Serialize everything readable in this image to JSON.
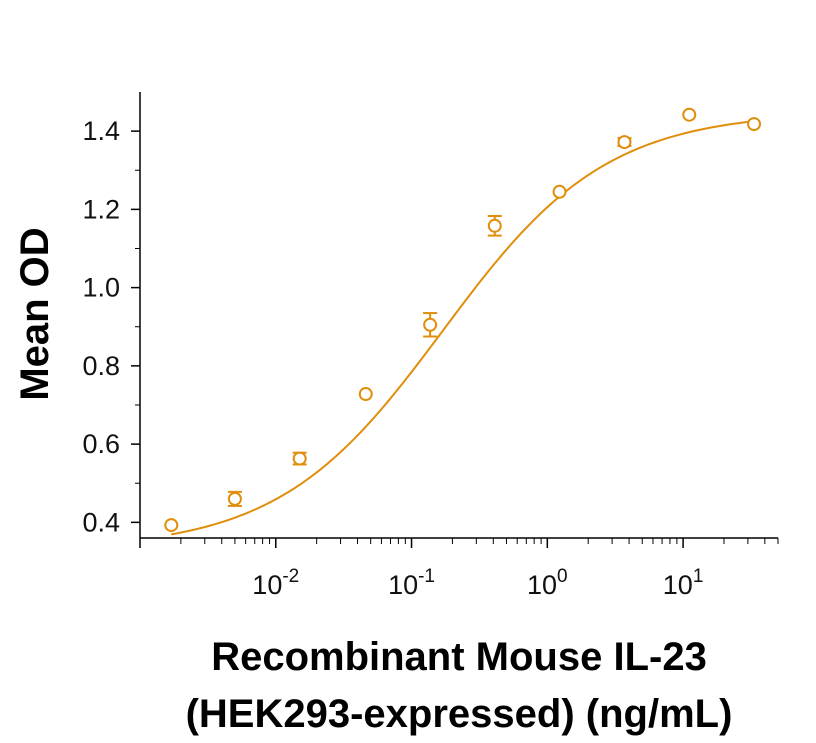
{
  "chart_data": {
    "type": "scatter",
    "title": "",
    "xlabel_lines": [
      "Recombinant Mouse IL-23",
      "(HEK293-expressed) (ng/mL)"
    ],
    "ylabel": "Mean OD",
    "x_scale": "log",
    "xlim": [
      0.001,
      50
    ],
    "ylim": [
      0.36,
      1.5
    ],
    "x_ticks": [
      {
        "value": 0.01,
        "base": "10",
        "exp": "-2"
      },
      {
        "value": 0.1,
        "base": "10",
        "exp": "-1"
      },
      {
        "value": 1,
        "base": "10",
        "exp": "0"
      },
      {
        "value": 10,
        "base": "10",
        "exp": "1"
      }
    ],
    "y_ticks": [
      {
        "value": 0.4,
        "label": "0.4"
      },
      {
        "value": 0.6,
        "label": "0.6"
      },
      {
        "value": 0.8,
        "label": "0.8"
      },
      {
        "value": 1.0,
        "label": "1.0"
      },
      {
        "value": 1.2,
        "label": "1.2"
      },
      {
        "value": 1.4,
        "label": "1.4"
      }
    ],
    "grid": false,
    "color": "#E08E0B",
    "series": [
      {
        "x": [
          0.0017,
          0.005,
          0.015,
          0.046,
          0.137,
          0.41,
          1.23,
          3.7,
          11.1,
          33.3
        ],
        "y": [
          0.393,
          0.46,
          0.563,
          0.728,
          0.905,
          1.158,
          1.245,
          1.372,
          1.442,
          1.418
        ],
        "err": [
          0,
          0.018,
          0.015,
          0,
          0.03,
          0.025,
          0,
          0.01,
          0,
          0
        ]
      }
    ],
    "fit_curve": {
      "model": "4PL",
      "bottom": 0.33,
      "top": 1.45,
      "ec50": 0.17,
      "hill": 0.72
    }
  }
}
